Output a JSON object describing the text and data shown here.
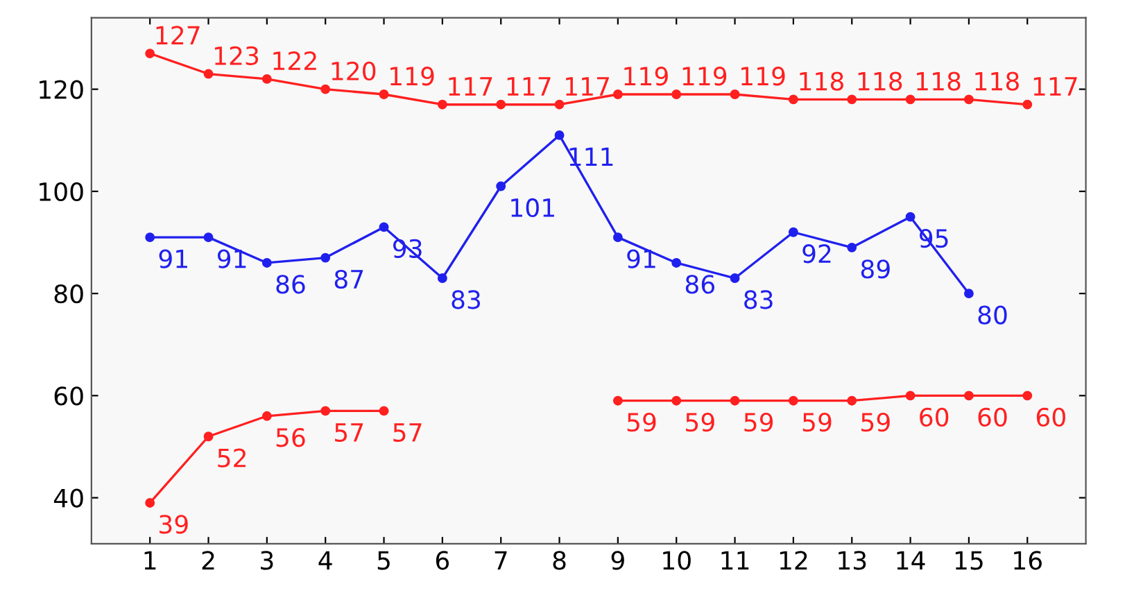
{
  "chart_data": {
    "type": "line",
    "x": [
      1,
      2,
      3,
      4,
      5,
      6,
      7,
      8,
      9,
      10,
      11,
      12,
      13,
      14,
      15,
      16
    ],
    "series": [
      {
        "color": "#ff2020",
        "values": [
          127,
          123,
          122,
          120,
          119,
          117,
          117,
          117,
          119,
          119,
          119,
          118,
          118,
          118,
          118,
          117
        ]
      },
      {
        "color": "#2020ee",
        "values": [
          91,
          91,
          86,
          87,
          93,
          83,
          101,
          111,
          91,
          86,
          83,
          92,
          89,
          95,
          80,
          null
        ]
      },
      {
        "color": "#ff2020",
        "values": [
          39,
          52,
          56,
          57,
          57,
          null,
          null,
          null,
          59,
          59,
          59,
          59,
          59,
          60,
          60,
          60
        ]
      }
    ],
    "xlim": [
      0,
      17
    ],
    "ylim": [
      31,
      134
    ],
    "xticks": [
      1,
      2,
      3,
      4,
      5,
      6,
      7,
      8,
      9,
      10,
      11,
      12,
      13,
      14,
      15,
      16
    ],
    "yticks": [
      40,
      60,
      80,
      100,
      120
    ],
    "data_labels": true,
    "marker": "circle",
    "line_style": "solid",
    "grid": false
  }
}
